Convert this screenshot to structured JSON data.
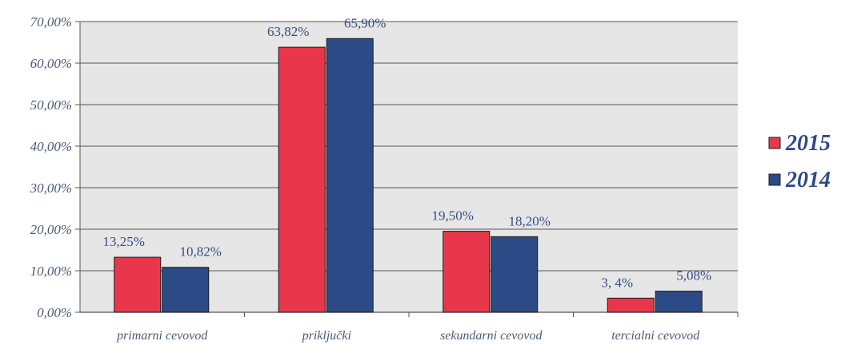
{
  "chart_data": {
    "type": "bar",
    "categories": [
      "primarni cevovod",
      "priključki",
      "sekundarni cevovod",
      "tercialni cevovod"
    ],
    "series": [
      {
        "name": "2015",
        "color": "#e8374b",
        "values": [
          13.25,
          63.82,
          19.5,
          3.4
        ],
        "labels": [
          "13,25%",
          "63,82%",
          "19,50%",
          "3, 4%"
        ]
      },
      {
        "name": "2014",
        "color": "#2b4a86",
        "values": [
          10.82,
          65.9,
          18.2,
          5.08
        ],
        "labels": [
          "10,82%",
          "65,90%",
          "18,20%",
          "5,08%"
        ]
      }
    ],
    "ylim": [
      0,
      70
    ],
    "yticks": [
      0,
      10,
      20,
      30,
      40,
      50,
      60,
      70
    ],
    "ytick_labels": [
      "0,00%",
      "10,00%",
      "20,00%",
      "30,00%",
      "40,00%",
      "50,00%",
      "60,00%",
      "70,00%"
    ],
    "grid": true,
    "legend_position": "right",
    "plot_background": "#e6e6e6"
  }
}
